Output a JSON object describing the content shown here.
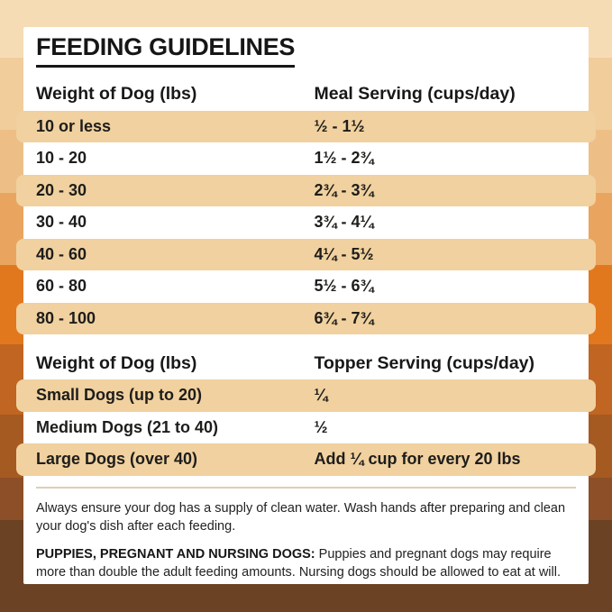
{
  "title": "FEEDING GUIDELINES",
  "meal_table": {
    "headers": [
      "Weight of Dog (lbs)",
      "Meal Serving (cups/day)"
    ],
    "rows": [
      [
        "10 or less",
        "½ - 1½"
      ],
      [
        "10 - 20",
        "1½ - 2¾"
      ],
      [
        "20 - 30",
        "2¾ - 3¾"
      ],
      [
        "30 - 40",
        "3¾ - 4¼"
      ],
      [
        "40 - 60",
        "4¼ - 5½"
      ],
      [
        "60 - 80",
        "5½ - 6¾"
      ],
      [
        "80 - 100",
        "6¾ - 7¾"
      ]
    ]
  },
  "topper_table": {
    "headers": [
      "Weight of Dog (lbs)",
      "Topper Serving (cups/day)"
    ],
    "rows": [
      [
        "Small Dogs (up to 20)",
        "¼"
      ],
      [
        "Medium Dogs (21 to 40)",
        "½"
      ],
      [
        "Large Dogs (over 40)",
        "Add ¼ cup for every 20 lbs"
      ]
    ]
  },
  "notes": {
    "water": "Always ensure your dog has a supply of clean water. Wash hands after preparing and clean your dog's dish after each feeding.",
    "special_label": "PUPPIES, PREGNANT AND NURSING DOGS:",
    "special_text": "Puppies and pregnant dogs may require more than double the adult feeding amounts. Nursing dogs should be allowed to eat at will."
  },
  "colors": {
    "row_highlight": "#f1d19f",
    "card_background": "#ffffff",
    "text": "#1d1d1b",
    "divider": "#dccfb4",
    "background_bands": [
      "#f6dcb4",
      "#f1cd9c",
      "#edbf87",
      "#e9a55f",
      "#e2781d",
      "#c06522",
      "#a55a22",
      "#8d4f27",
      "#6b4224"
    ]
  }
}
